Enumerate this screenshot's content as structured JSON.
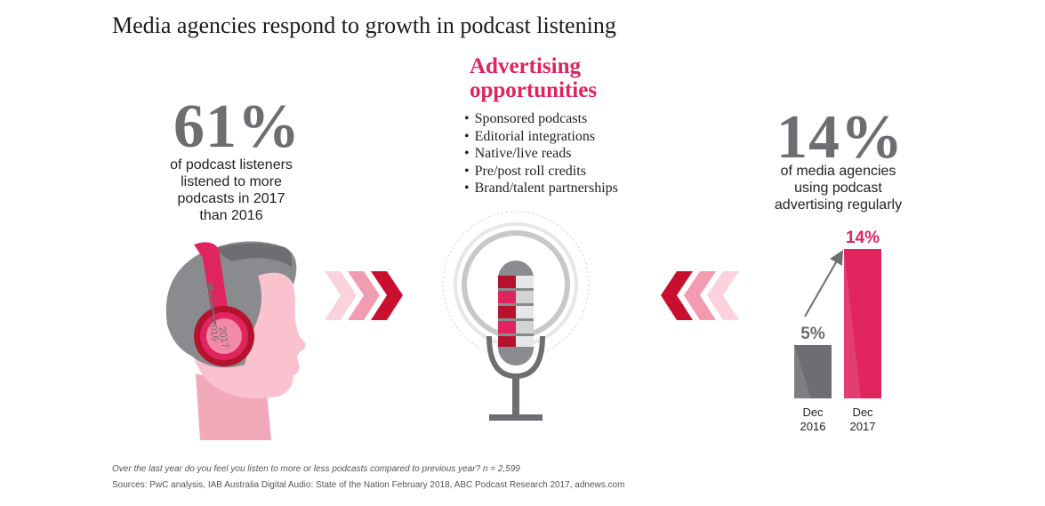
{
  "title": "Media agencies respond to growth in podcast listening",
  "left_stat": {
    "value": "61%",
    "lines": [
      "of podcast listeners",
      "listened to more",
      "podcasts in 2017",
      "than 2016"
    ]
  },
  "headphone_labels": {
    "from_year": "2016",
    "to_year": "2017"
  },
  "advertising": {
    "title_lines": [
      "Advertising",
      "opportunities"
    ],
    "items": [
      "Sponsored podcasts",
      "Editorial integrations",
      "Native/live reads",
      "Pre/post roll credits",
      "Brand/talent partnerships"
    ]
  },
  "right_stat": {
    "value": "14%",
    "lines": [
      "of media agencies",
      "using podcast",
      "advertising regularly"
    ]
  },
  "chart_data": {
    "type": "bar",
    "categories": [
      "Dec 2016",
      "Dec 2017"
    ],
    "category_lines": [
      [
        "Dec",
        "2016"
      ],
      [
        "Dec",
        "2017"
      ]
    ],
    "values": [
      5,
      14
    ],
    "value_labels": [
      "5%",
      "14%"
    ],
    "colors": [
      "#6d6e71",
      "#e0245e"
    ],
    "ylim": [
      0,
      14
    ],
    "title": "",
    "xlabel": "",
    "ylabel": ""
  },
  "colors": {
    "accent": "#e0245e",
    "grey": "#6d6e71",
    "dark_red": "#b5122e",
    "pink": "#f7b6c4"
  },
  "footnote": "Over the last year do you feel you listen to more or less podcasts compared to previous year? n = 2,599",
  "sources": "Sources: PwC analysis, IAB Australia Digital Audio: State of the Nation February 2018, ABC Podcast Research 2017, adnews.com"
}
